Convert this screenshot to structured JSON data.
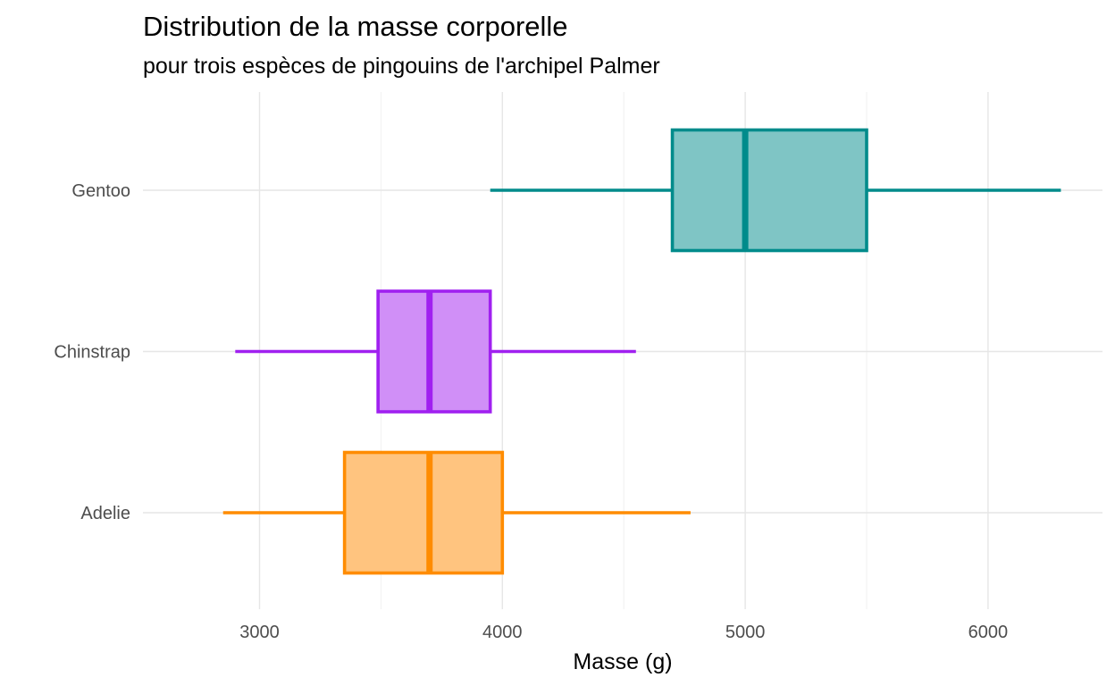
{
  "chart_data": {
    "type": "boxplot",
    "title": "Distribution de la masse corporelle",
    "subtitle": "pour trois espèces de pingouins de l'archipel Palmer",
    "xlabel": "Masse (g)",
    "ylabel": "",
    "xlim": [
      2520,
      6480
    ],
    "x_ticks": [
      3000,
      4000,
      5000,
      6000
    ],
    "grid": true,
    "categories": [
      "Adelie",
      "Chinstrap",
      "Gentoo"
    ],
    "series": [
      {
        "name": "Adelie",
        "whisker_low": 2850,
        "q1": 3350,
        "median": 3700,
        "q3": 4000,
        "whisker_high": 4775,
        "color": "#FF8C00",
        "fill": "#FFC47F"
      },
      {
        "name": "Chinstrap",
        "whisker_low": 2900,
        "q1": 3488,
        "median": 3700,
        "q3": 3950,
        "whisker_high": 4550,
        "color": "#A020F0",
        "fill": "#D08FF7"
      },
      {
        "name": "Gentoo",
        "whisker_low": 3950,
        "q1": 4700,
        "median": 5000,
        "q3": 5500,
        "whisker_high": 6300,
        "color": "#008B8B",
        "fill": "#7FC5C5"
      }
    ]
  }
}
